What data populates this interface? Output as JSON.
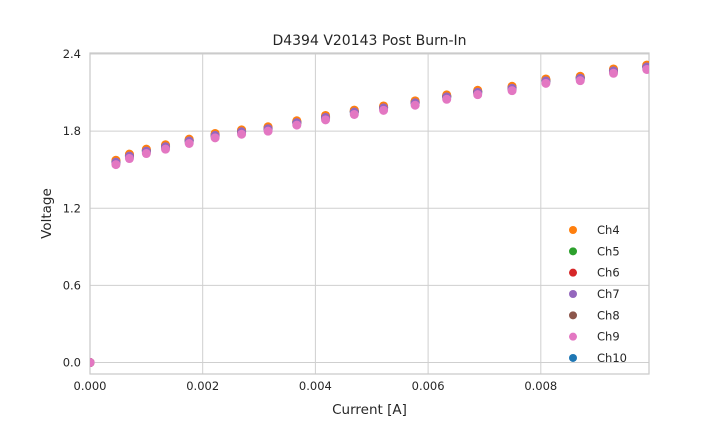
{
  "figure": {
    "title": "D4394 V20143 Post Burn-In"
  },
  "chart_data": {
    "type": "scatter",
    "title": "D4394 V20143 Post Burn-In",
    "xlabel": "Current [A]",
    "ylabel": "Voltage",
    "xlim": [
      0.0,
      0.00992
    ],
    "ylim": [
      -0.089,
      2.408
    ],
    "grid": true,
    "legend_position": "lower right inside, no frame",
    "x_ticks": {
      "values": [
        0.0,
        0.002,
        0.004,
        0.006,
        0.008
      ],
      "labels": [
        "0.000",
        "0.002",
        "0.004",
        "0.006",
        "0.008"
      ]
    },
    "y_ticks": {
      "values": [
        0.0,
        0.6,
        1.2,
        1.8,
        2.4
      ],
      "labels": [
        "0.0",
        "0.6",
        "1.2",
        "1.8",
        "2.4"
      ]
    },
    "x": [
      0.0,
      0.00046,
      0.0007,
      0.001,
      0.00134,
      0.00176,
      0.00222,
      0.00269,
      0.00316,
      0.00367,
      0.00418,
      0.00469,
      0.00521,
      0.00577,
      0.00633,
      0.00688,
      0.00749,
      0.00809,
      0.0087,
      0.00929,
      0.00988
    ],
    "series": [
      {
        "name": "Ch4",
        "color": "#ff7f0e",
        "values": [
          0.0,
          1.574,
          1.621,
          1.66,
          1.694,
          1.738,
          1.782,
          1.81,
          1.834,
          1.881,
          1.922,
          1.964,
          1.996,
          2.036,
          2.082,
          2.118,
          2.149,
          2.206,
          2.227,
          2.284,
          2.314
        ]
      },
      {
        "name": "Ch5",
        "color": "#2ca02c",
        "values": [
          0.0,
          1.564,
          1.611,
          1.65,
          1.684,
          1.728,
          1.772,
          1.8,
          1.824,
          1.871,
          1.912,
          1.954,
          1.986,
          2.026,
          2.072,
          2.108,
          2.139,
          2.196,
          2.217,
          2.274,
          2.304
        ]
      },
      {
        "name": "Ch6",
        "color": "#d62728",
        "values": [
          0.0,
          1.561,
          1.608,
          1.647,
          1.681,
          1.725,
          1.769,
          1.797,
          1.821,
          1.868,
          1.909,
          1.951,
          1.983,
          2.023,
          2.069,
          2.105,
          2.136,
          2.193,
          2.214,
          2.271,
          2.301
        ]
      },
      {
        "name": "Ch7",
        "color": "#9467bd",
        "values": [
          0.0,
          1.559,
          1.606,
          1.645,
          1.679,
          1.723,
          1.767,
          1.795,
          1.819,
          1.866,
          1.907,
          1.949,
          1.981,
          2.021,
          2.067,
          2.103,
          2.134,
          2.191,
          2.212,
          2.269,
          2.299
        ]
      },
      {
        "name": "Ch8",
        "color": "#8c564b",
        "values": [
          0.0,
          1.567,
          1.614,
          1.653,
          1.687,
          1.731,
          1.775,
          1.803,
          1.827,
          1.874,
          1.915,
          1.957,
          1.989,
          2.029,
          2.075,
          2.111,
          2.142,
          2.199,
          2.22,
          2.277,
          2.307
        ]
      },
      {
        "name": "Ch9",
        "color": "#e377c2",
        "values": [
          0.0,
          1.54,
          1.587,
          1.626,
          1.66,
          1.704,
          1.748,
          1.776,
          1.8,
          1.847,
          1.888,
          1.93,
          1.962,
          2.002,
          2.048,
          2.084,
          2.115,
          2.172,
          2.193,
          2.25,
          2.28
        ]
      },
      {
        "name": "Ch10",
        "color": "#1f77b4",
        "values": [
          0.0,
          1.552,
          1.599,
          1.638,
          1.672,
          1.716,
          1.76,
          1.788,
          1.812,
          1.859,
          1.9,
          1.942,
          1.974,
          2.014,
          2.06,
          2.096,
          2.127,
          2.184,
          2.205,
          2.262,
          2.292
        ]
      }
    ],
    "draw_order": [
      "Ch10",
      "Ch6",
      "Ch5",
      "Ch8",
      "Ch4",
      "Ch7",
      "Ch9"
    ]
  }
}
